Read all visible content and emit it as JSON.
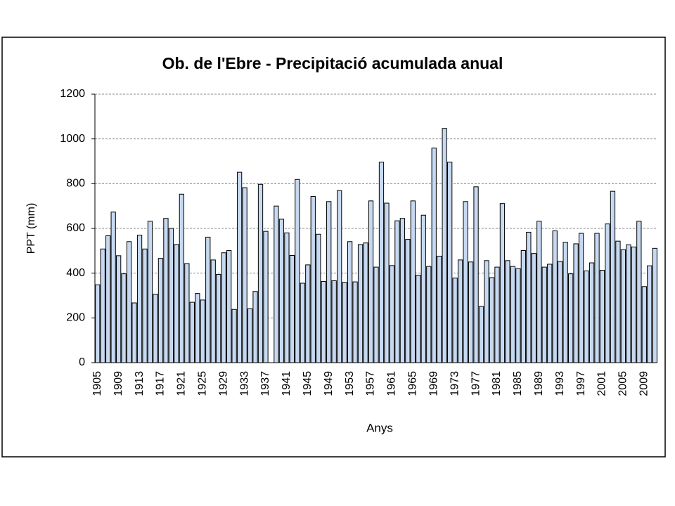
{
  "chart_data": {
    "type": "bar",
    "title": "Ob. de l'Ebre - Precipitació acumulada anual",
    "x_label": "Anys",
    "y_label": "PPT (mm)",
    "categories": [
      "1905",
      null,
      null,
      null,
      "1909",
      null,
      null,
      null,
      "1913",
      null,
      null,
      null,
      "1917",
      null,
      null,
      null,
      "1921",
      null,
      null,
      null,
      "1925",
      null,
      null,
      null,
      "1929",
      null,
      null,
      null,
      "1933",
      null,
      null,
      null,
      "1937",
      null,
      null,
      null,
      "1941",
      null,
      null,
      null,
      "1945",
      null,
      null,
      null,
      "1949",
      null,
      null,
      null,
      "1953",
      null,
      null,
      null,
      "1957",
      null,
      null,
      null,
      "1961",
      null,
      null,
      null,
      "1965",
      null,
      null,
      null,
      "1969",
      null,
      null,
      null,
      "1973",
      null,
      null,
      null,
      "1977",
      null,
      null,
      null,
      "1981",
      null,
      null,
      null,
      "1985",
      null,
      null,
      null,
      "1989",
      null,
      null,
      null,
      "1993",
      null,
      null,
      null,
      "1997",
      null,
      null,
      null,
      "2001",
      null,
      null,
      null,
      "2005",
      null,
      null,
      null,
      "2009",
      null,
      null
    ],
    "values": [
      348,
      508,
      567,
      673,
      478,
      397,
      541,
      267,
      570,
      508,
      632,
      306,
      466,
      645,
      600,
      528,
      753,
      443,
      270,
      309,
      280,
      561,
      459,
      394,
      491,
      501,
      238,
      851,
      782,
      241,
      318,
      797,
      587,
      null,
      700,
      641,
      580,
      479,
      819,
      355,
      437,
      743,
      574,
      363,
      720,
      366,
      769,
      359,
      541,
      361,
      528,
      535,
      723,
      427,
      896,
      713,
      434,
      634,
      645,
      551,
      723,
      391,
      659,
      430,
      959,
      476,
      1047,
      896,
      378,
      459,
      720,
      450,
      786,
      251,
      456,
      380,
      427,
      711,
      456,
      430,
      420,
      501,
      583,
      488,
      632,
      427,
      440,
      589,
      452,
      538,
      397,
      531,
      578,
      410,
      446,
      578,
      413,
      620,
      766,
      543,
      505,
      527,
      517,
      632,
      340,
      433,
      511
    ],
    "color": "#c6d9f1",
    "ylim": [
      0,
      1200
    ],
    "yticks": [
      0,
      200,
      400,
      600,
      800,
      1000,
      1200
    ],
    "grid": true
  }
}
